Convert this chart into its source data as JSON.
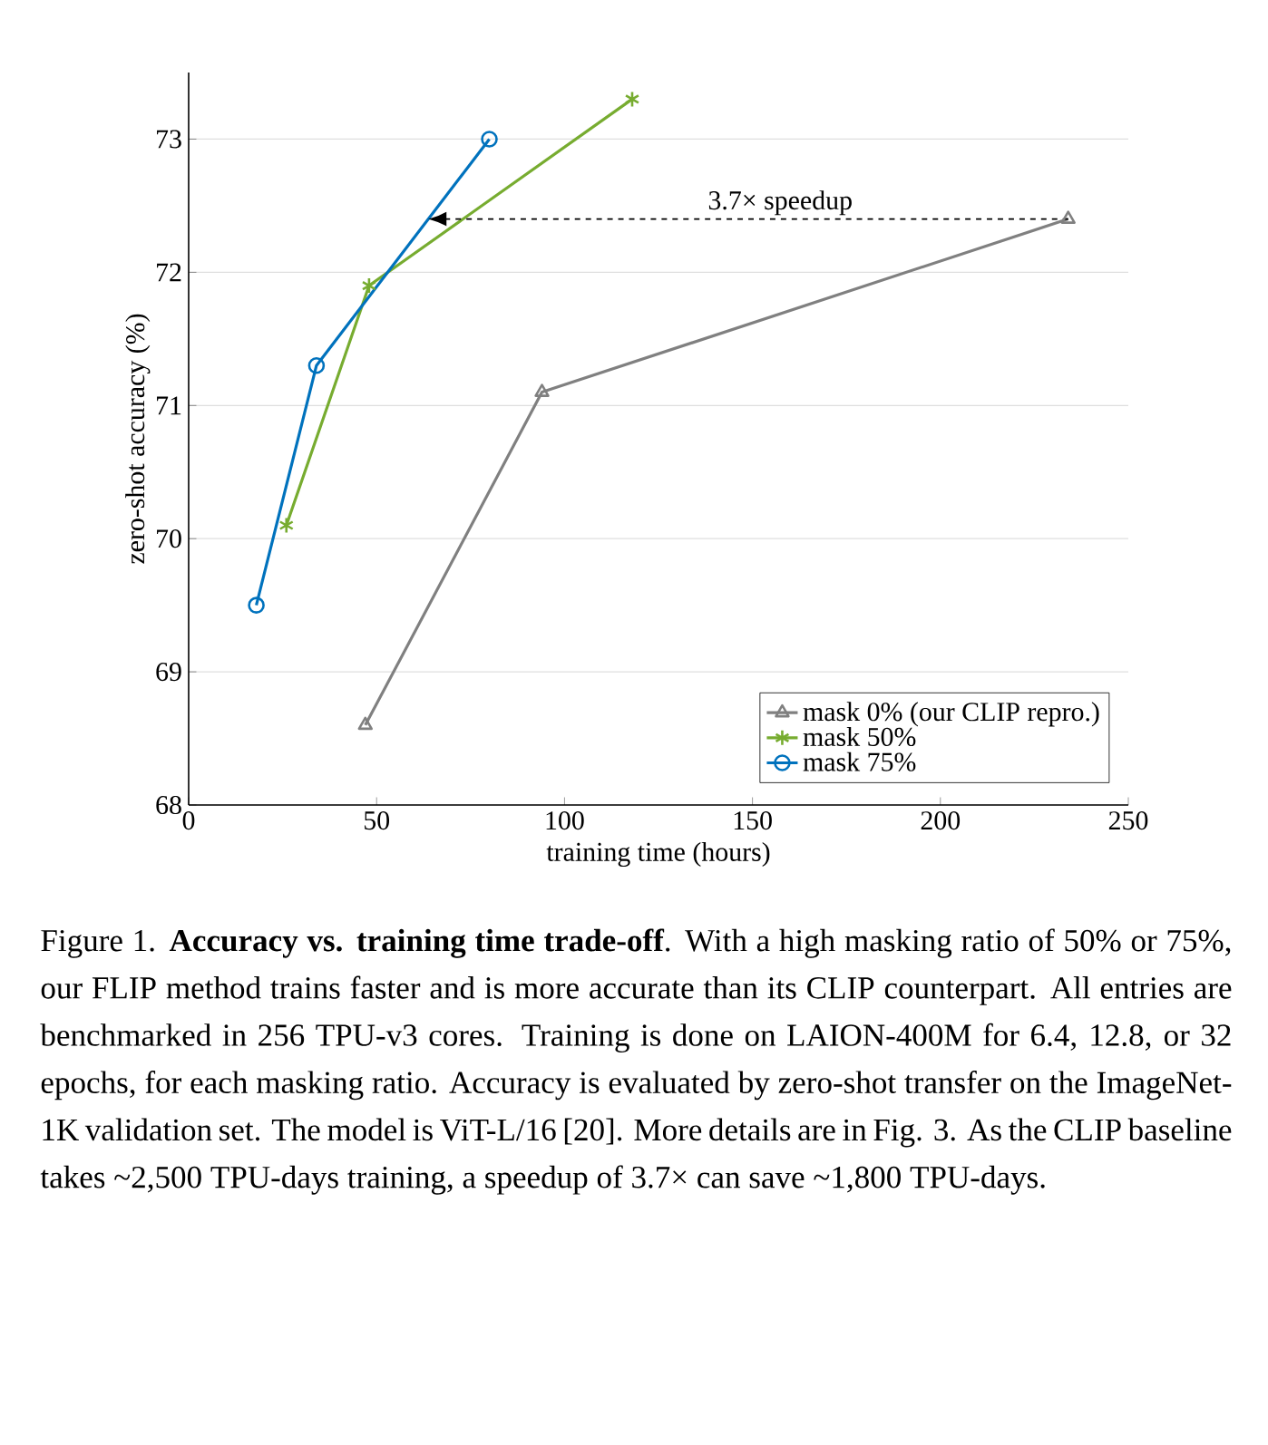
{
  "chart_data": {
    "type": "line",
    "xlabel": "training time (hours)",
    "ylabel": "zero-shot accuracy (%)",
    "xlim": [
      0,
      250
    ],
    "xticks": [
      0,
      50,
      100,
      150,
      200,
      250
    ],
    "ylim": [
      68,
      73.5
    ],
    "yticks": [
      68,
      69,
      70,
      71,
      72,
      73
    ],
    "grid": "y",
    "legend": "bottom right",
    "line_style": "solid",
    "series": [
      {
        "name": "mask 0% (our CLIP repro.)",
        "color": "#808080",
        "marker": "triangle",
        "x": [
          47,
          94,
          234
        ],
        "values": [
          68.6,
          71.1,
          72.4
        ]
      },
      {
        "name": "mask 50%",
        "color": "#77ac30",
        "marker": "cross",
        "x": [
          26,
          48,
          118
        ],
        "values": [
          70.1,
          71.9,
          73.3
        ]
      },
      {
        "name": "mask 75%",
        "color": "#0072bd",
        "marker": "circle",
        "x": [
          18,
          34,
          80
        ],
        "values": [
          69.5,
          71.3,
          73.0
        ]
      }
    ],
    "annotations": [
      "3.7× speedup",
      "Figure 1. **Accuracy vs. training time trade-off**. With a high masking ratio of 50% or 75%, our FLIP method trains faster and is more accurate than its CLIP counterpart. All entries are benchmarked in 256 TPU-v3 cores. Training is done on LAION-400M for 6.4, 12.8, or 32 epochs, for each masking ratio. Accuracy is evaluated by zero-shot transfer on the ImageNet-1K validation set. The model is ViT-L/16 [20]. More details are in Fig. 3. As the CLIP baseline takes ~2,500 TPU-days training, a speedup of 3.7× can save ~1,800 TPU-days."
    ]
  }
}
